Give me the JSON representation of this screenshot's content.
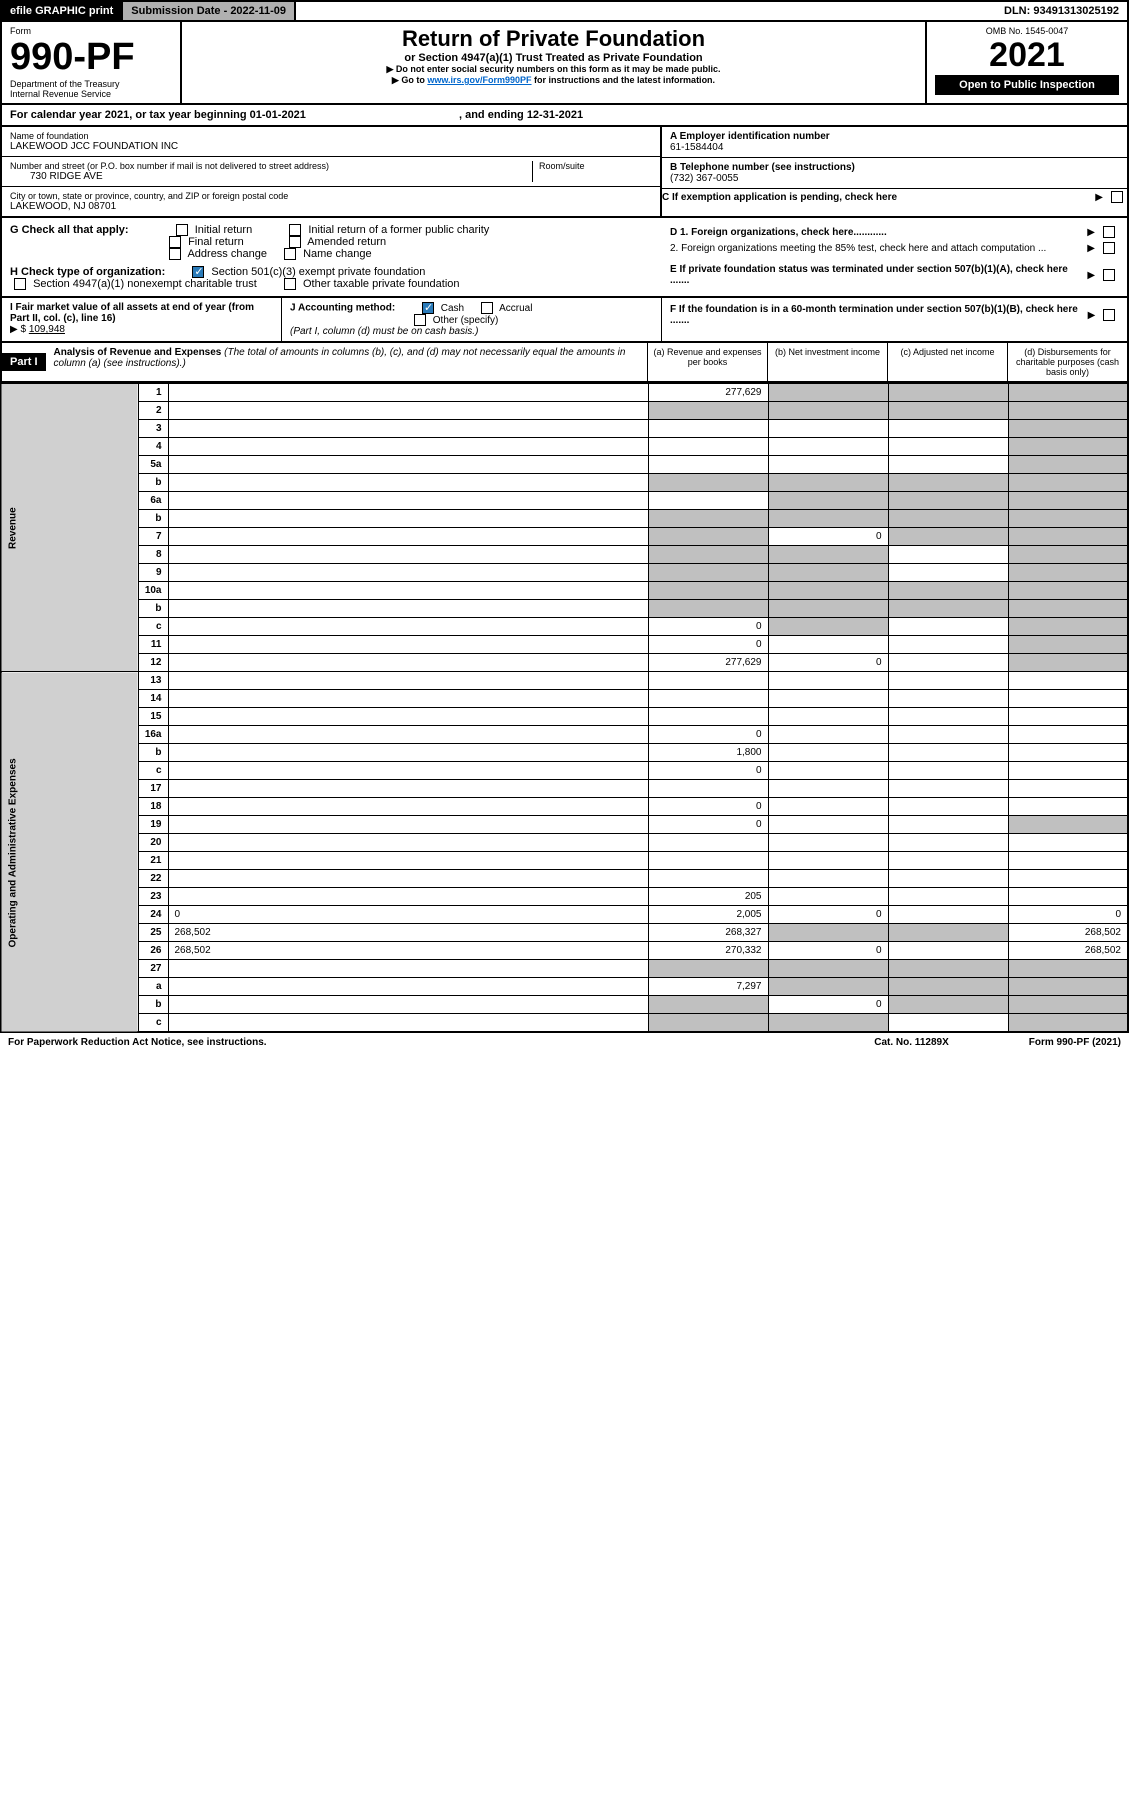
{
  "topbar": {
    "efile": "efile GRAPHIC print",
    "sub_label": "Submission Date - 2022-11-09",
    "dln": "DLN: 93491313025192"
  },
  "header": {
    "form_word": "Form",
    "form_no": "990-PF",
    "dept": "Department of the Treasury",
    "irs": "Internal Revenue Service",
    "title": "Return of Private Foundation",
    "subtitle": "or Section 4947(a)(1) Trust Treated as Private Foundation",
    "note1": "▶ Do not enter social security numbers on this form as it may be made public.",
    "note2_pre": "▶ Go to ",
    "note2_link": "www.irs.gov/Form990PF",
    "note2_post": " for instructions and the latest information.",
    "omb": "OMB No. 1545-0047",
    "year": "2021",
    "open": "Open to Public Inspection"
  },
  "cal": {
    "text": "For calendar year 2021, or tax year beginning 01-01-2021",
    "ending": ", and ending 12-31-2021"
  },
  "ident": {
    "name_label": "Name of foundation",
    "name": "LAKEWOOD JCC FOUNDATION INC",
    "addr_label": "Number and street (or P.O. box number if mail is not delivered to street address)",
    "addr": "730 RIDGE AVE",
    "room_label": "Room/suite",
    "city_label": "City or town, state or province, country, and ZIP or foreign postal code",
    "city": "LAKEWOOD, NJ  08701",
    "ein_label": "A Employer identification number",
    "ein": "61-1584404",
    "tel_label": "B Telephone number (see instructions)",
    "tel": "(732) 367-0055",
    "c_label": "C If exemption application is pending, check here"
  },
  "checks": {
    "g_label": "G Check all that apply:",
    "g_opts": [
      "Initial return",
      "Initial return of a former public charity",
      "Final return",
      "Amended return",
      "Address change",
      "Name change"
    ],
    "h_label": "H Check type of organization:",
    "h1": "Section 501(c)(3) exempt private foundation",
    "h2": "Section 4947(a)(1) nonexempt charitable trust",
    "h3": "Other taxable private foundation",
    "i_label": "I Fair market value of all assets at end of year (from Part II, col. (c), line 16)",
    "i_val": "109,948",
    "j_label": "J Accounting method:",
    "j_cash": "Cash",
    "j_accrual": "Accrual",
    "j_other": "Other (specify)",
    "j_note": "(Part I, column (d) must be on cash basis.)",
    "d1": "D 1. Foreign organizations, check here............",
    "d2": "2. Foreign organizations meeting the 85% test, check here and attach computation ...",
    "e": "E  If private foundation status was terminated under section 507(b)(1)(A), check here .......",
    "f": "F  If the foundation is in a 60-month termination under section 507(b)(1)(B), check here .......",
    "arrow": "▶"
  },
  "part1": {
    "label": "Part I",
    "title": "Analysis of Revenue and Expenses",
    "note": "(The total of amounts in columns (b), (c), and (d) may not necessarily equal the amounts in column (a) (see instructions).)",
    "cols": {
      "a": "(a)   Revenue and expenses per books",
      "b": "(b)   Net investment income",
      "c": "(c)   Adjusted net income",
      "d": "(d)   Disbursements for charitable purposes (cash basis only)"
    }
  },
  "sidelabels": {
    "revenue": "Revenue",
    "expenses": "Operating and Administrative Expenses"
  },
  "rows": [
    {
      "n": "1",
      "d": "",
      "a": "277,629",
      "b": "",
      "c": "",
      "grayB": true,
      "grayC": true,
      "grayD": true
    },
    {
      "n": "2",
      "d": "",
      "a": "",
      "b": "",
      "c": "",
      "grayA": true,
      "grayB": true,
      "grayC": true,
      "grayD": true
    },
    {
      "n": "3",
      "d": "",
      "a": "",
      "b": "",
      "c": "",
      "grayD": true
    },
    {
      "n": "4",
      "d": "",
      "a": "",
      "b": "",
      "c": "",
      "grayD": true
    },
    {
      "n": "5a",
      "d": "",
      "a": "",
      "b": "",
      "c": "",
      "grayD": true
    },
    {
      "n": "b",
      "d": "",
      "a": "",
      "b": "",
      "c": "",
      "grayA": true,
      "grayB": true,
      "grayC": true,
      "grayD": true
    },
    {
      "n": "6a",
      "d": "",
      "a": "",
      "b": "",
      "c": "",
      "grayB": true,
      "grayC": true,
      "grayD": true
    },
    {
      "n": "b",
      "d": "",
      "a": "",
      "b": "",
      "c": "",
      "grayA": true,
      "grayB": true,
      "grayC": true,
      "grayD": true
    },
    {
      "n": "7",
      "d": "",
      "a": "",
      "b": "0",
      "c": "",
      "grayA": true,
      "grayC": true,
      "grayD": true
    },
    {
      "n": "8",
      "d": "",
      "a": "",
      "b": "",
      "c": "",
      "grayA": true,
      "grayB": true,
      "grayD": true
    },
    {
      "n": "9",
      "d": "",
      "a": "",
      "b": "",
      "c": "",
      "grayA": true,
      "grayB": true,
      "grayD": true
    },
    {
      "n": "10a",
      "d": "",
      "a": "",
      "b": "",
      "c": "",
      "grayA": true,
      "grayB": true,
      "grayC": true,
      "grayD": true
    },
    {
      "n": "b",
      "d": "",
      "a": "",
      "b": "",
      "c": "",
      "grayA": true,
      "grayB": true,
      "grayC": true,
      "grayD": true
    },
    {
      "n": "c",
      "d": "",
      "a": "0",
      "b": "",
      "c": "",
      "grayB": true,
      "grayD": true
    },
    {
      "n": "11",
      "d": "",
      "a": "0",
      "b": "",
      "c": "",
      "grayD": true
    },
    {
      "n": "12",
      "d": "",
      "a": "277,629",
      "b": "0",
      "c": "",
      "grayD": true
    },
    {
      "n": "13",
      "d": "",
      "a": "",
      "b": "",
      "c": ""
    },
    {
      "n": "14",
      "d": "",
      "a": "",
      "b": "",
      "c": ""
    },
    {
      "n": "15",
      "d": "",
      "a": "",
      "b": "",
      "c": ""
    },
    {
      "n": "16a",
      "d": "",
      "a": "0",
      "b": "",
      "c": ""
    },
    {
      "n": "b",
      "d": "",
      "a": "1,800",
      "b": "",
      "c": ""
    },
    {
      "n": "c",
      "d": "",
      "a": "0",
      "b": "",
      "c": ""
    },
    {
      "n": "17",
      "d": "",
      "a": "",
      "b": "",
      "c": ""
    },
    {
      "n": "18",
      "d": "",
      "a": "0",
      "b": "",
      "c": ""
    },
    {
      "n": "19",
      "d": "",
      "a": "0",
      "b": "",
      "c": "",
      "grayD": true
    },
    {
      "n": "20",
      "d": "",
      "a": "",
      "b": "",
      "c": ""
    },
    {
      "n": "21",
      "d": "",
      "a": "",
      "b": "",
      "c": ""
    },
    {
      "n": "22",
      "d": "",
      "a": "",
      "b": "",
      "c": ""
    },
    {
      "n": "23",
      "d": "",
      "a": "205",
      "b": "",
      "c": ""
    },
    {
      "n": "24",
      "d": "0",
      "a": "2,005",
      "b": "0",
      "c": ""
    },
    {
      "n": "25",
      "d": "268,502",
      "a": "268,327",
      "b": "",
      "c": "",
      "grayB": true,
      "grayC": true
    },
    {
      "n": "26",
      "d": "268,502",
      "a": "270,332",
      "b": "0",
      "c": ""
    },
    {
      "n": "27",
      "d": "",
      "a": "",
      "b": "",
      "c": "",
      "grayA": true,
      "grayB": true,
      "grayC": true,
      "grayD": true
    },
    {
      "n": "a",
      "d": "",
      "a": "7,297",
      "b": "",
      "c": "",
      "grayB": true,
      "grayC": true,
      "grayD": true
    },
    {
      "n": "b",
      "d": "",
      "a": "",
      "b": "0",
      "c": "",
      "grayA": true,
      "grayC": true,
      "grayD": true
    },
    {
      "n": "c",
      "d": "",
      "a": "",
      "b": "",
      "c": "",
      "grayA": true,
      "grayB": true,
      "grayD": true
    }
  ],
  "footer": {
    "left": "For Paperwork Reduction Act Notice, see instructions.",
    "mid": "Cat. No. 11289X",
    "right": "Form 990-PF (2021)"
  },
  "colors": {
    "black": "#000000",
    "gray_cell": "#c0c0c0",
    "gray_side": "#d0d0d0",
    "link": "#0066cc",
    "check": "#2b7bb9"
  }
}
